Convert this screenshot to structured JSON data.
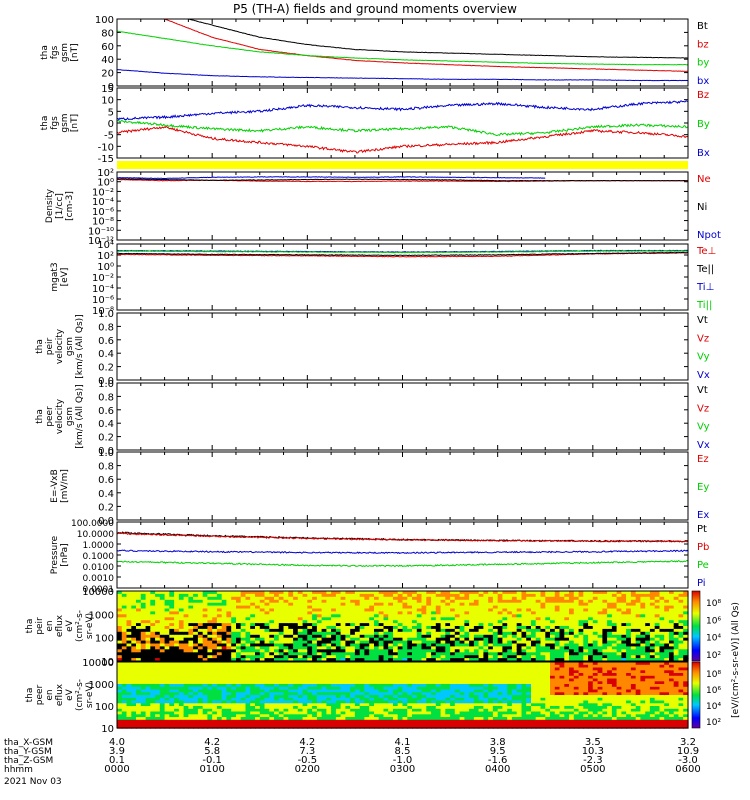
{
  "title": "P5 (TH-A) fields and ground moments overview",
  "colors": {
    "black": "#000000",
    "red": "#e00000",
    "green": "#00d000",
    "blue": "#0000d0",
    "yellow": "#ffff00"
  },
  "chart_data": [
    {
      "id": "fgs-gsm-mag",
      "type": "line",
      "ylabel": [
        "tha",
        "fgs",
        "gsm",
        "[nT]"
      ],
      "ylim": [
        -10,
        100
      ],
      "yticks": [
        "100",
        "80",
        "60",
        "40",
        "20",
        "0"
      ],
      "series": [
        {
          "name": "Bt",
          "color": "black",
          "x": [
            0,
            0.5,
            1,
            1.5,
            2,
            2.5,
            3,
            3.5,
            4,
            4.5,
            5,
            5.5,
            6
          ],
          "values": [
            130,
            110,
            90,
            70,
            58,
            50,
            46,
            44,
            42,
            40,
            38,
            37,
            36
          ]
        },
        {
          "name": "bz",
          "color": "red",
          "x": [
            0,
            0.5,
            1,
            1.5,
            2,
            2.5,
            3,
            3.5,
            4,
            4.5,
            5,
            5.5,
            6
          ],
          "values": [
            120,
            100,
            70,
            50,
            40,
            32,
            28,
            25,
            22,
            20,
            18,
            16,
            14
          ]
        },
        {
          "name": "by",
          "color": "green",
          "x": [
            0,
            0.5,
            1,
            1.5,
            2,
            2.5,
            3,
            3.5,
            4,
            4.5,
            5,
            5.5,
            6
          ],
          "values": [
            80,
            68,
            56,
            46,
            40,
            36,
            33,
            31,
            29,
            27,
            26,
            25,
            25
          ]
        },
        {
          "name": "bx",
          "color": "blue",
          "x": [
            0,
            0.5,
            1,
            1.5,
            2,
            2.5,
            3,
            3.5,
            4,
            4.5,
            5,
            5.5,
            6
          ],
          "values": [
            17,
            11,
            7,
            5,
            4,
            3,
            2,
            1,
            1,
            0,
            0,
            -1,
            -1
          ]
        }
      ]
    },
    {
      "id": "fgs-gsm-comp",
      "type": "line",
      "ylabel": [
        "tha",
        "fgs",
        "gsm",
        "[nT]"
      ],
      "ylim": [
        -18,
        18
      ],
      "yticks": [
        "15",
        "10",
        "5",
        "0",
        "-5",
        "-10",
        "-15"
      ],
      "series": [
        {
          "name": "Bz",
          "color": "red",
          "x": [
            0,
            0.5,
            1,
            1.5,
            2,
            2.5,
            3,
            3.5,
            4,
            4.5,
            5,
            5.5,
            6
          ],
          "values": [
            -5,
            -2,
            -8,
            -10,
            -12,
            -15,
            -12,
            -11,
            -10,
            -7,
            -4,
            -5,
            -7
          ]
        },
        {
          "name": "By",
          "color": "green",
          "x": [
            0,
            0.5,
            1,
            1.5,
            2,
            2.5,
            3,
            3.5,
            4,
            4.5,
            5,
            5.5,
            6
          ],
          "values": [
            1,
            -1,
            -3,
            -4,
            -2,
            -4,
            -3,
            -2,
            -6,
            -5,
            -2,
            -1,
            -2
          ]
        },
        {
          "name": "Bx",
          "color": "blue",
          "x": [
            0,
            0.5,
            1,
            1.5,
            2,
            2.5,
            3,
            3.5,
            4,
            4.5,
            5,
            5.5,
            6
          ],
          "values": [
            2,
            3,
            5,
            6,
            9,
            8,
            7,
            9,
            10,
            8,
            7,
            10,
            11
          ]
        }
      ]
    },
    {
      "id": "density",
      "type": "line",
      "ylabel": [
        "Density",
        "[1/cc]",
        "[cm-3]"
      ],
      "yscale": "log",
      "ylim": [
        -13,
        5
      ],
      "yticks": [
        "10²",
        "10⁰",
        "10⁻²",
        "10⁻⁴",
        "10⁻⁶",
        "10⁻⁸",
        "10⁻¹⁰",
        "10⁻¹²"
      ],
      "series": [
        {
          "name": "Ne",
          "color": "red",
          "x": [
            0,
            0.5,
            1,
            1.5,
            2,
            2.5,
            3,
            3.5,
            4,
            4.5,
            5,
            5.5,
            6
          ],
          "values": [
            3.0,
            2.7,
            2.8,
            2.6,
            2.5,
            2.5,
            2.6,
            2.6,
            2.5,
            2.6,
            2.7,
            2.7,
            2.7
          ]
        },
        {
          "name": "Ni",
          "color": "black",
          "x": [
            0,
            0.5,
            1,
            1.5,
            2,
            2.5,
            3,
            3.5,
            4,
            4.5,
            5,
            5.5,
            6
          ],
          "values": [
            3.2,
            3.0,
            2.8,
            2.9,
            3.0,
            3.1,
            3.0,
            2.9,
            2.7,
            2.7,
            2.7,
            2.7,
            2.7
          ]
        },
        {
          "name": "Npot",
          "color": "blue",
          "x": [
            0,
            0.5,
            1,
            1.5,
            2,
            2.5,
            3,
            3.5,
            4,
            4.5
          ],
          "values": [
            3.5,
            3.3,
            3.6,
            3.7,
            3.7,
            3.6,
            3.7,
            3.6,
            3.5,
            3.4
          ]
        }
      ]
    },
    {
      "id": "temperature",
      "type": "line",
      "ylabel": [
        "mgat3",
        "[eV]"
      ],
      "yscale": "log",
      "ylim": [
        -9,
        5
      ],
      "yticks": [
        "10⁴",
        "10²",
        "10⁰",
        "10⁻²",
        "10⁻⁴",
        "10⁻⁶",
        "10⁻⁸"
      ],
      "series": [
        {
          "name": "Te⊥",
          "color": "red",
          "x": [
            0,
            1,
            2,
            3,
            4,
            5,
            6
          ],
          "values": [
            2.8,
            2.6,
            2.5,
            2.3,
            2.4,
            2.9,
            3.1
          ]
        },
        {
          "name": "Te||",
          "color": "black",
          "x": [
            0,
            1,
            2,
            3,
            4,
            5,
            6
          ],
          "values": [
            3.0,
            2.8,
            2.7,
            2.6,
            2.7,
            3.0,
            3.2
          ]
        },
        {
          "name": "Ti⊥",
          "color": "blue",
          "x": [
            0,
            1,
            2,
            3,
            4,
            5,
            6
          ],
          "values": [
            3.6,
            3.5,
            3.4,
            3.3,
            3.4,
            3.6,
            3.6
          ]
        },
        {
          "name": "Ti||",
          "color": "green",
          "x": [
            0,
            1,
            2,
            3,
            4,
            5,
            6
          ],
          "values": [
            3.5,
            3.4,
            3.3,
            3.2,
            3.3,
            3.5,
            3.5
          ]
        }
      ]
    },
    {
      "id": "peir-velocity",
      "type": "line",
      "ylabel": [
        "tha",
        "peir",
        "velocity",
        "gsm",
        "[km/s (All Qs)]"
      ],
      "ylim": [
        0,
        1
      ],
      "yticks": [
        "1.0",
        "0.8",
        "0.6",
        "0.4",
        "0.2",
        "0.0"
      ],
      "series": [
        {
          "name": "Vt",
          "color": "black",
          "values": []
        },
        {
          "name": "Vz",
          "color": "red",
          "values": []
        },
        {
          "name": "Vy",
          "color": "green",
          "values": []
        },
        {
          "name": "Vx",
          "color": "blue",
          "values": []
        }
      ]
    },
    {
      "id": "peer-velocity",
      "type": "line",
      "ylabel": [
        "tha",
        "peer",
        "velocity",
        "gsm",
        "[km/s (All Qs)]"
      ],
      "ylim": [
        0,
        1
      ],
      "yticks": [
        "1.0",
        "0.8",
        "0.6",
        "0.4",
        "0.2",
        "0.0"
      ],
      "series": [
        {
          "name": "Vt",
          "color": "black",
          "values": []
        },
        {
          "name": "Vz",
          "color": "red",
          "values": []
        },
        {
          "name": "Vy",
          "color": "green",
          "values": []
        },
        {
          "name": "Vx",
          "color": "blue",
          "values": []
        }
      ]
    },
    {
      "id": "efield",
      "type": "line",
      "ylabel": [
        "E=-VxB",
        "[mV/m]"
      ],
      "ylim": [
        0,
        1
      ],
      "yticks": [
        "1.0",
        "0.8",
        "0.6",
        "0.4",
        "0.2",
        "0.0"
      ],
      "series": [
        {
          "name": "Ez",
          "color": "red",
          "values": []
        },
        {
          "name": "Ey",
          "color": "green",
          "values": []
        },
        {
          "name": "Ex",
          "color": "blue",
          "values": []
        }
      ]
    },
    {
      "id": "pressure",
      "type": "line",
      "ylabel": [
        "Pressure",
        "[nPa]"
      ],
      "yscale": "log",
      "ylim": [
        -4,
        2
      ],
      "yticks": [
        "100.0000",
        "10.0000",
        "1.0000",
        "0.1000",
        "0.0100",
        "0.0010",
        "0.0001"
      ],
      "series": [
        {
          "name": "Pt",
          "color": "black",
          "x": [
            0,
            1,
            2,
            3,
            4,
            5,
            6
          ],
          "values": [
            1.05,
            0.75,
            0.55,
            0.4,
            0.32,
            0.27,
            0.25
          ]
        },
        {
          "name": "Pb",
          "color": "red",
          "x": [
            0,
            1,
            2,
            3,
            4,
            5,
            6
          ],
          "values": [
            0.95,
            0.7,
            0.5,
            0.38,
            0.31,
            0.26,
            0.24
          ]
        },
        {
          "name": "Pe",
          "color": "green",
          "x": [
            0,
            1,
            2,
            3,
            4,
            5,
            6
          ],
          "values": [
            -1.6,
            -1.75,
            -1.95,
            -2.0,
            -1.85,
            -1.7,
            -1.55
          ]
        },
        {
          "name": "Pi",
          "color": "blue",
          "x": [
            0,
            1,
            2,
            3,
            4,
            5,
            6
          ],
          "values": [
            -0.6,
            -0.7,
            -0.78,
            -0.8,
            -0.75,
            -0.7,
            -0.62
          ]
        }
      ]
    },
    {
      "id": "peir-eflux",
      "type": "heatmap",
      "ylabel": [
        "tha",
        "peir",
        "en",
        "eflux",
        "eV",
        "(cm²-s-",
        "sr-eV)"
      ],
      "yscale": "log",
      "yticks": [
        "10000",
        "1000",
        "100",
        "10"
      ],
      "colorbar_ticks": [
        "10⁸",
        "10⁶",
        "10⁴",
        "10²"
      ]
    },
    {
      "id": "peer-eflux",
      "type": "heatmap",
      "ylabel": [
        "tha",
        "peer",
        "en",
        "eflux",
        "eV",
        "(cm²-s-",
        "sr-eV)"
      ],
      "yscale": "log",
      "yticks": [
        "10000",
        "1000",
        "100",
        "10"
      ],
      "colorbar_ticks": [
        "10⁸",
        "10⁶",
        "10⁴",
        "10²"
      ],
      "colorbar_label": "[eV/(cm²-s-sr-eV)] (All Qs)"
    }
  ],
  "xaxis": {
    "rows": [
      {
        "label": "tha_X-GSM",
        "values": [
          "4.0",
          "4.2",
          "4.2",
          "4.1",
          "3.8",
          "3.5",
          "3.2"
        ]
      },
      {
        "label": "tha_Y-GSM",
        "values": [
          "3.9",
          "5.8",
          "7.3",
          "8.5",
          "9.5",
          "10.3",
          "10.9"
        ]
      },
      {
        "label": "tha_Z-GSM",
        "values": [
          "0.1",
          "-0.1",
          "-0.5",
          "-1.0",
          "-1.6",
          "-2.3",
          "-3.0"
        ]
      },
      {
        "label": "hhmm",
        "values": [
          "0000",
          "0100",
          "0200",
          "0300",
          "0400",
          "0500",
          "0600"
        ]
      }
    ],
    "date": "2021 Nov 03"
  }
}
